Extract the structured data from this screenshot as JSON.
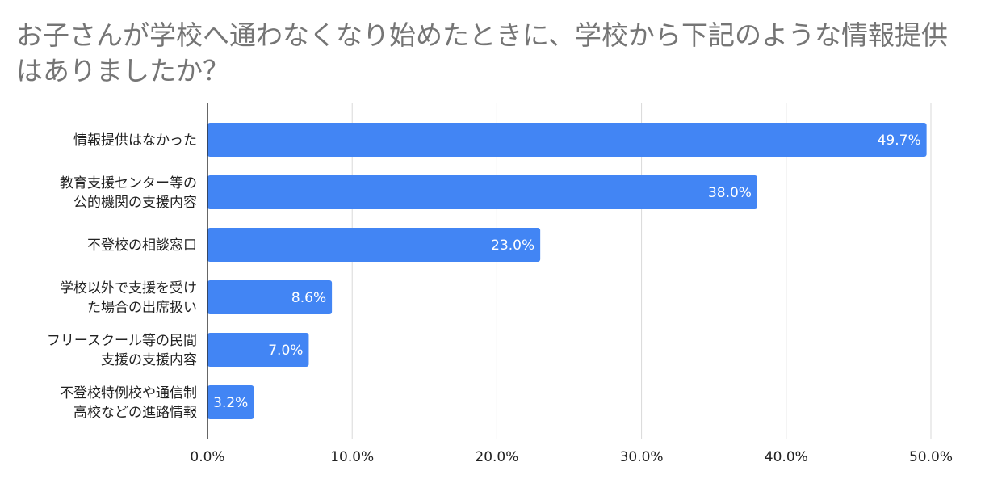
{
  "chart_data": {
    "type": "bar",
    "orientation": "horizontal",
    "title": "お子さんが学校へ通わなくなり始めたときに、学校から下記のような情報提供はありましたか？",
    "categories": [
      [
        "情報提供はなかった"
      ],
      [
        "教育支援センター等の",
        "公的機関の支援内容"
      ],
      [
        "不登校の相談窓口"
      ],
      [
        "学校以外で支援を受け",
        "た場合の出席扱い"
      ],
      [
        "フリースクール等の民間",
        "支援の支援内容"
      ],
      [
        "不登校特例校や通信制",
        "高校などの進路情報"
      ]
    ],
    "values": [
      49.7,
      38.0,
      23.0,
      8.6,
      7.0,
      3.2
    ],
    "value_labels": [
      "49.7%",
      "38.0%",
      "23.0%",
      "8.6%",
      "7.0%",
      "3.2%"
    ],
    "xlim": [
      0,
      50
    ],
    "x_ticks": [
      0,
      10,
      20,
      30,
      40,
      50
    ],
    "x_tick_labels": [
      "0.0%",
      "10.0%",
      "20.0%",
      "30.0%",
      "40.0%",
      "50.0%"
    ],
    "xlabel": "",
    "ylabel": "",
    "grid": true,
    "bar_color": "#4285f4",
    "grid_color": "#d9d9d9"
  }
}
